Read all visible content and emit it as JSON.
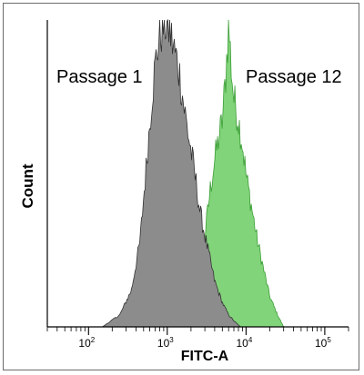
{
  "chart_data": {
    "type": "area",
    "title": "",
    "xlabel": "FITC-A",
    "ylabel": "Count",
    "xscale": "log",
    "xlim": [
      30,
      200000
    ],
    "x_ticks": [
      {
        "value": 100,
        "base": "10",
        "exp": "2"
      },
      {
        "value": 1000,
        "base": "10",
        "exp": "3"
      },
      {
        "value": 10000,
        "base": "10",
        "exp": "4"
      },
      {
        "value": 100000,
        "base": "10",
        "exp": "5"
      }
    ],
    "y_ticks": [],
    "grid": false,
    "legend": "none",
    "series": [
      {
        "name": "Passage 1",
        "color": "#8c8c8c",
        "edge_color": "#333333",
        "x": [
          150,
          250,
          350,
          450,
          550,
          650,
          750,
          850,
          950,
          1050,
          1200,
          1400,
          1600,
          1800,
          2000,
          2300,
          2600,
          3000,
          3500,
          4000,
          5000,
          6000,
          7000,
          8500
        ],
        "y": [
          0,
          4,
          12,
          28,
          55,
          78,
          92,
          98,
          100,
          98,
          92,
          85,
          74,
          65,
          58,
          48,
          38,
          30,
          22,
          15,
          8,
          4,
          2,
          0
        ]
      },
      {
        "name": "Passage 12",
        "color": "#82d47a",
        "edge_color": "#3b9e36",
        "x": [
          1500,
          2000,
          2500,
          3000,
          3500,
          4000,
          4500,
          5000,
          5500,
          6000,
          6500,
          7000,
          8000,
          9000,
          10000,
          12000,
          14000,
          17000,
          20000,
          25000,
          30000
        ],
        "y": [
          0,
          4,
          15,
          30,
          45,
          55,
          62,
          68,
          82,
          100,
          85,
          75,
          68,
          60,
          50,
          38,
          28,
          18,
          10,
          4,
          0
        ]
      }
    ],
    "annotations": [
      "Passage 1",
      "Passage 12"
    ]
  }
}
